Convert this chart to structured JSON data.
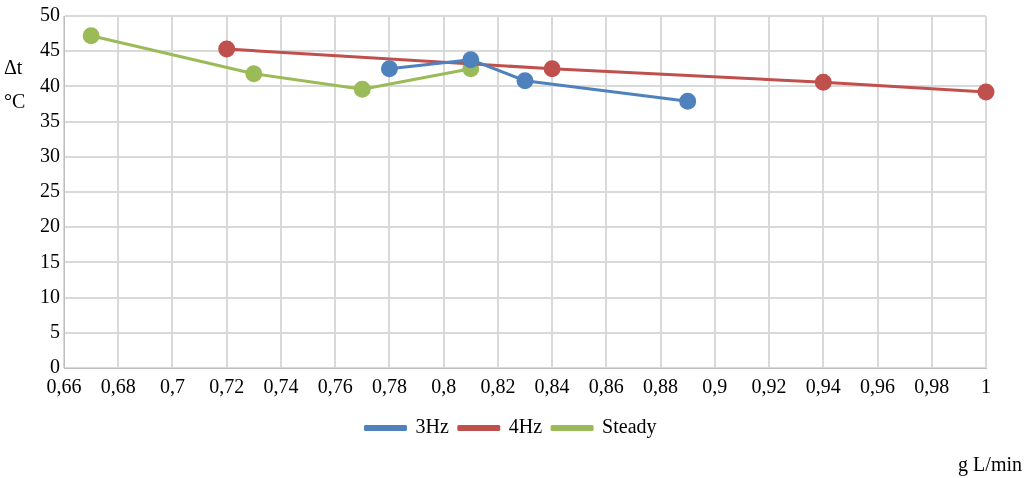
{
  "chart_data": {
    "type": "line",
    "ylabel": "Δt °C",
    "xlabel": "g L/min",
    "xlim": [
      0.66,
      1.0
    ],
    "xticks": [
      {
        "value": 0.66,
        "label": "0,66"
      },
      {
        "value": 0.68,
        "label": "0,68"
      },
      {
        "value": 0.7,
        "label": "0,7"
      },
      {
        "value": 0.72,
        "label": "0,72"
      },
      {
        "value": 0.74,
        "label": "0,74"
      },
      {
        "value": 0.76,
        "label": "0,76"
      },
      {
        "value": 0.78,
        "label": "0,78"
      },
      {
        "value": 0.8,
        "label": "0,8"
      },
      {
        "value": 0.82,
        "label": "0,82"
      },
      {
        "value": 0.84,
        "label": "0,84"
      },
      {
        "value": 0.86,
        "label": "0,86"
      },
      {
        "value": 0.88,
        "label": "0,88"
      },
      {
        "value": 0.9,
        "label": "0,9"
      },
      {
        "value": 0.92,
        "label": "0,92"
      },
      {
        "value": 0.94,
        "label": "0,94"
      },
      {
        "value": 0.96,
        "label": "0,96"
      },
      {
        "value": 0.98,
        "label": "0,98"
      },
      {
        "value": 1.0,
        "label": "1"
      }
    ],
    "ylim": [
      0,
      50
    ],
    "yticks": [
      0,
      5,
      10,
      15,
      20,
      25,
      30,
      35,
      40,
      45,
      50
    ],
    "grid": true,
    "legend": "bottom",
    "marker": "circle",
    "line_style": "solid",
    "series": [
      {
        "name": "3Hz",
        "color": "#4f81bd",
        "x": [
          0.78,
          0.81,
          0.83,
          0.89
        ],
        "values": [
          42.5,
          43.8,
          40.8,
          37.9
        ]
      },
      {
        "name": "4Hz",
        "color": "#c0504d",
        "x": [
          0.72,
          0.84,
          0.94,
          1.0
        ],
        "values": [
          45.3,
          42.5,
          40.6,
          39.2
        ]
      },
      {
        "name": "Steady",
        "color": "#9bbb59",
        "x": [
          0.67,
          0.73,
          0.77,
          0.81
        ],
        "values": [
          47.2,
          41.8,
          39.6,
          42.5
        ]
      }
    ]
  }
}
